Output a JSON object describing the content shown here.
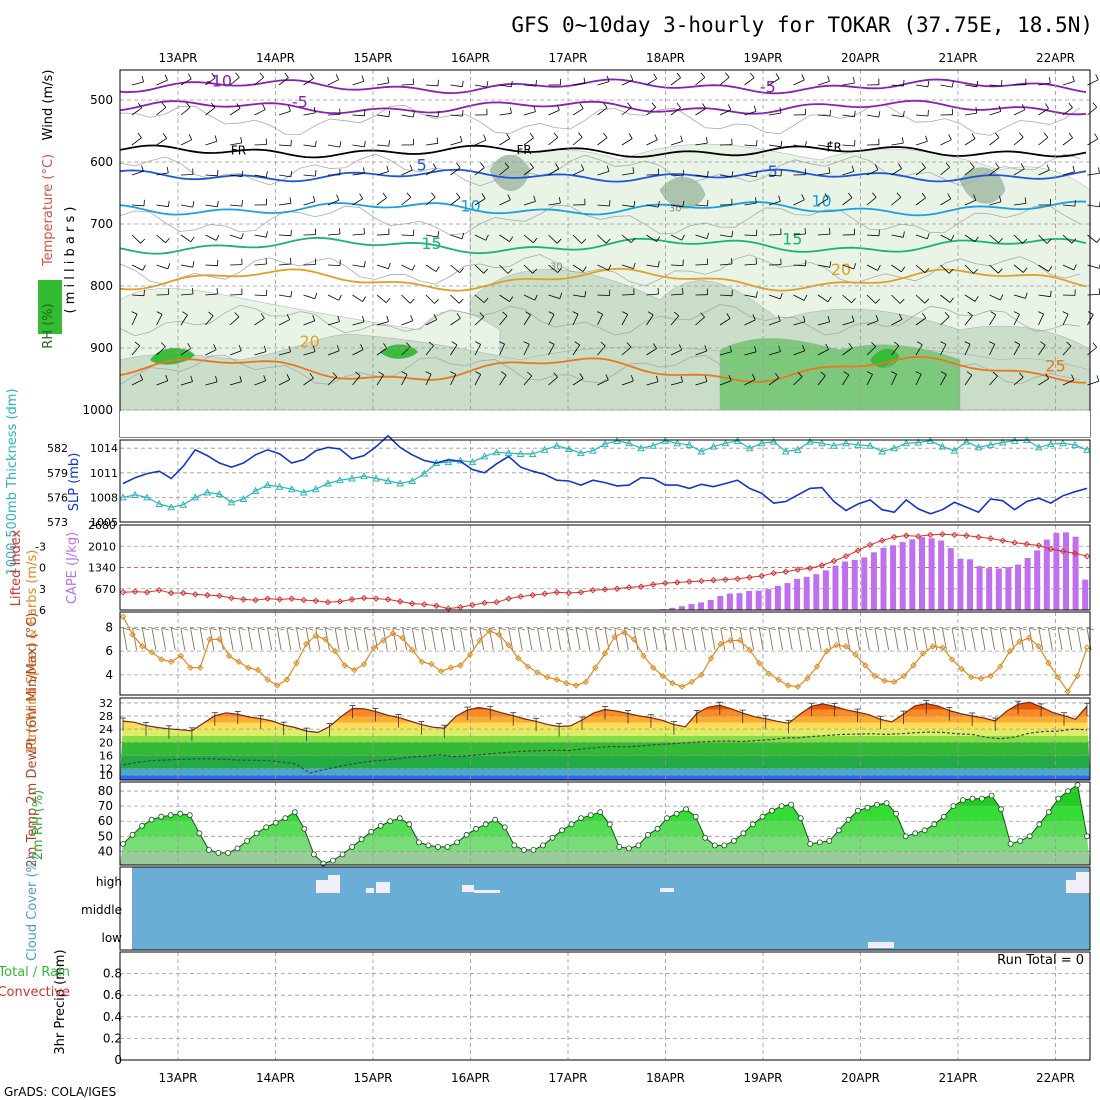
{
  "title": "GFS 0~10day 3-hourly for TOKAR (37.75E, 18.5N)",
  "footer": "GrADS: COLA/IGES",
  "dates": [
    "13APR",
    "14APR",
    "15APR",
    "16APR",
    "17APR",
    "18APR",
    "19APR",
    "20APR",
    "21APR",
    "22APR"
  ],
  "colors": {
    "rh_light": "#e8f4e6",
    "rh_mid": "#c9ddc9",
    "rh_dark": "#a9c2ab",
    "rh_green": "#78c878",
    "rh_bright": "#33bb33",
    "temp_neg": "#8a1fb0",
    "temp_fr": "#000000",
    "temp_5": "#1f55d8",
    "temp_10": "#1aa0dd",
    "temp_15": "#18b37a",
    "temp_20": "#e0a028",
    "temp_25": "#e87818",
    "thickness": "#2bb5bb",
    "slp": "#1535c8",
    "lifted": "#d83030",
    "cape": "#c070ee",
    "wind": "#e08a20",
    "cloud": "#6aaed6",
    "rh2m": "#33bb33",
    "barb": "#000000"
  },
  "chart_data": [
    {
      "panel": "upper-air",
      "type": "heatmap",
      "ylabel_parts": [
        "RH (%)",
        "Temperature (°C)",
        "Wind (m/s)",
        "( m i l l i b a r s )"
      ],
      "yticks": [
        "500",
        "600",
        "700",
        "800",
        "900",
        "1000"
      ],
      "ylim": [
        1000,
        450
      ],
      "contour_labels": [
        {
          "value": "-10",
          "x": 0.42,
          "p": 478
        },
        {
          "value": "-5",
          "x": 6.05,
          "p": 488
        },
        {
          "value": "-5",
          "x": 1.25,
          "p": 512
        },
        {
          "value": "FR",
          "x": 0.62,
          "p": 588
        },
        {
          "value": "FR",
          "x": 3.55,
          "p": 587
        },
        {
          "value": "FR",
          "x": 6.73,
          "p": 583
        },
        {
          "value": "5",
          "x": 2.5,
          "p": 614
        },
        {
          "value": "5",
          "x": 6.1,
          "p": 624
        },
        {
          "value": "10",
          "x": 3.0,
          "p": 680
        },
        {
          "value": "10",
          "x": 6.6,
          "p": 672
        },
        {
          "value": "15",
          "x": 2.6,
          "p": 740
        },
        {
          "value": "15",
          "x": 6.3,
          "p": 733
        },
        {
          "value": "20",
          "x": 1.35,
          "p": 898
        },
        {
          "value": "20",
          "x": 6.8,
          "p": 782
        },
        {
          "value": "25",
          "x": 9.0,
          "p": 938
        },
        {
          "value": "30",
          "x": 3.88,
          "p": 773
        },
        {
          "value": "30",
          "x": 5.1,
          "p": 680
        }
      ]
    },
    {
      "panel": "thickness-slp",
      "type": "line",
      "ylabel_left": "1000-500mb Thickness (dm)",
      "ylabel_right": "SLP (mb)",
      "yticks_left": [
        "582",
        "579",
        "576",
        "573"
      ],
      "yticks_right": [
        "1014",
        "1011",
        "1008",
        "1005"
      ],
      "ylim_left": [
        573,
        583
      ],
      "ylim_right": [
        1005,
        1015
      ],
      "series": [
        {
          "name": "Thickness",
          "unit": "dm",
          "values": [
            576.0,
            576.3,
            576.0,
            575.2,
            574.8,
            575.1,
            576.0,
            576.6,
            576.4,
            575.4,
            575.8,
            576.8,
            577.5,
            577.3,
            577.0,
            576.6,
            577.0,
            577.7,
            578.1,
            578.3,
            578.6,
            578.3,
            578.0,
            577.7,
            578.0,
            578.9,
            580.2,
            580.3,
            580.5,
            580.3,
            581.0,
            581.5,
            581.4,
            581.3,
            581.3,
            581.8,
            582.3,
            581.9,
            581.4,
            581.7,
            582.5,
            582.9,
            582.6,
            582.0,
            582.3,
            582.9,
            582.6,
            582.4,
            581.6,
            582.2,
            582.6,
            582.9,
            582.0,
            582.6,
            582.8,
            581.6,
            581.8,
            582.8,
            582.6,
            582.3,
            582.6,
            582.4,
            582.3,
            581.6,
            582.0,
            582.6,
            582.7,
            582.9,
            582.2,
            581.7,
            582.8,
            582.1,
            582.4,
            582.7,
            582.9,
            583.0,
            582.1,
            582.5,
            582.6,
            582.4,
            581.8
          ]
        },
        {
          "name": "SLP",
          "unit": "mb",
          "values": [
            1009.7,
            1010.4,
            1010.9,
            1011.2,
            1010.3,
            1011.8,
            1013.8,
            1013.1,
            1012.2,
            1011.7,
            1012.2,
            1013.2,
            1013.8,
            1013.3,
            1012.2,
            1012.6,
            1013.7,
            1014.1,
            1013.9,
            1012.7,
            1013.1,
            1014.2,
            1015.5,
            1014.1,
            1013.2,
            1012.5,
            1012.2,
            1012.6,
            1012.4,
            1011.4,
            1011.0,
            1012.1,
            1013.0,
            1011.7,
            1011.2,
            1010.8,
            1010.1,
            1010.0,
            1009.5,
            1010.1,
            1009.8,
            1009.4,
            1009.5,
            1010.4,
            1010.3,
            1009.5,
            1009.5,
            1009.1,
            1009.6,
            1009.3,
            1009.7,
            1010.1,
            1009.1,
            1008.5,
            1007.3,
            1007.5,
            1008.3,
            1009.1,
            1009.2,
            1007.5,
            1006.4,
            1007.2,
            1007.7,
            1006.5,
            1006.2,
            1007.7,
            1006.6,
            1006.0,
            1006.5,
            1007.4,
            1006.8,
            1006.2,
            1007.8,
            1007.6,
            1006.5,
            1007.5,
            1007.9,
            1007.3,
            1008.2,
            1008.7,
            1009.1
          ]
        }
      ]
    },
    {
      "panel": "lifted-cape",
      "type": "bar",
      "ylabel_left": "Lifted Index",
      "ylabel_right": "CAPE (J/kg)",
      "yticks_left": [
        "-3",
        "0",
        "3",
        "6"
      ],
      "yticks_right": [
        "2680",
        "2010",
        "1340",
        "670"
      ],
      "ylim_left": [
        6,
        -6
      ],
      "ylim_right": [
        0,
        2680
      ],
      "series": [
        {
          "name": "Lifted Index",
          "values": [
            3.5,
            3.4,
            3.5,
            3.2,
            3.6,
            3.6,
            3.8,
            3.9,
            4.0,
            4.3,
            4.5,
            4.6,
            4.4,
            4.5,
            4.4,
            4.6,
            4.7,
            4.9,
            4.8,
            4.5,
            4.3,
            4.4,
            4.5,
            4.8,
            5.1,
            5.2,
            5.4,
            5.8,
            5.6,
            5.3,
            5.0,
            4.9,
            4.4,
            4.1,
            3.9,
            3.7,
            3.5,
            3.6,
            3.5,
            3.2,
            3.1,
            3.0,
            2.8,
            2.7,
            2.4,
            2.2,
            2.1,
            2.0,
            1.9,
            1.8,
            1.7,
            1.6,
            1.4,
            1.2,
            0.8,
            0.6,
            0.3,
            0.1,
            -0.3,
            -0.9,
            -1.6,
            -2.4,
            -3.2,
            -3.8,
            -4.3,
            -4.5,
            -4.4,
            -4.6,
            -4.7,
            -4.6,
            -4.5,
            -4.3,
            -4.1,
            -3.8,
            -3.5,
            -3.3,
            -3.1,
            -2.6,
            -2.3,
            -2.0,
            -1.6
          ]
        },
        {
          "name": "CAPE",
          "unit": "J/kg",
          "values": [
            0,
            0,
            0,
            0,
            0,
            0,
            0,
            0,
            0,
            0,
            0,
            0,
            0,
            0,
            0,
            0,
            0,
            0,
            0,
            0,
            0,
            0,
            0,
            0,
            0,
            0,
            0,
            0,
            0,
            0,
            0,
            0,
            0,
            0,
            0,
            0,
            0,
            0,
            0,
            0,
            0,
            0,
            0,
            0,
            0,
            0,
            0,
            0,
            0,
            0,
            0,
            0,
            0,
            0,
            0,
            0,
            25,
            70,
            120,
            190,
            240,
            320,
            440,
            520,
            530,
            600,
            610,
            660,
            760,
            850,
            980,
            1040,
            1130,
            1250,
            1400,
            1530,
            1580,
            1660,
            1820,
            1960,
            2040,
            2140,
            2230,
            2300,
            2260,
            2190,
            1950,
            1620,
            1600,
            1380,
            1320,
            1310,
            1350,
            1430,
            1640,
            1880,
            2220,
            2430,
            2450,
            2310,
            960
          ]
        }
      ]
    },
    {
      "panel": "wind10m",
      "type": "line",
      "ylabel": "10m Wind Speed & Barbs (m/s)",
      "yticks": [
        "8",
        "6",
        "4"
      ],
      "ylim": [
        2.3,
        9.3
      ],
      "series": [
        {
          "name": "10m Wind Speed",
          "unit": "m/s",
          "values": [
            8.9,
            7.4,
            6.4,
            5.9,
            5.3,
            5.1,
            5.6,
            4.6,
            4.6,
            7.0,
            7.0,
            5.6,
            5.1,
            4.6,
            4.4,
            3.6,
            3.1,
            3.6,
            5.0,
            6.6,
            7.3,
            7.0,
            6.0,
            4.8,
            4.4,
            4.9,
            6.3,
            6.9,
            7.5,
            7.1,
            6.1,
            5.1,
            4.9,
            4.3,
            4.6,
            4.8,
            5.7,
            6.9,
            7.7,
            7.4,
            6.5,
            5.4,
            4.7,
            4.2,
            3.8,
            3.6,
            3.3,
            3.1,
            3.4,
            4.6,
            5.8,
            7.2,
            7.6,
            7.0,
            5.6,
            4.6,
            3.9,
            3.3,
            3.0,
            3.4,
            4.0,
            5.4,
            6.6,
            6.9,
            6.9,
            6.1,
            5.0,
            4.1,
            3.6,
            3.1,
            3.0,
            3.7,
            4.7,
            6.0,
            6.5,
            6.4,
            5.7,
            4.8,
            3.9,
            3.5,
            3.4,
            3.9,
            4.8,
            5.8,
            6.4,
            6.3,
            5.3,
            4.5,
            3.8,
            3.7,
            3.9,
            4.7,
            6.0,
            6.8,
            7.1,
            6.4,
            5.0,
            3.8,
            2.6,
            3.9,
            6.3
          ]
        }
      ]
    },
    {
      "panel": "temp2m",
      "type": "area",
      "ylabel": "2m Temp 2m DewPt (6hr Min/Max) (°C)",
      "yticks": [
        "32",
        "28",
        "24",
        "20",
        "16",
        "12",
        "10"
      ],
      "ylim": [
        8.5,
        33.5
      ],
      "series": [
        {
          "name": "2m Temp",
          "unit": "°C",
          "values": [
            26.5,
            26.1,
            25.1,
            24.5,
            24.1,
            23.8,
            23.5,
            25.8,
            28.1,
            29.0,
            28.5,
            27.7,
            27.2,
            26.5,
            25.2,
            24.5,
            23.4,
            23.0,
            24.8,
            27.8,
            30.3,
            30.2,
            29.4,
            28.3,
            27.6,
            26.5,
            25.4,
            24.6,
            24.3,
            27.9,
            29.8,
            30.6,
            30.0,
            29.0,
            28.1,
            27.1,
            26.4,
            25.4,
            24.8,
            25.0,
            26.8,
            28.9,
            30.0,
            29.5,
            28.8,
            28.0,
            27.5,
            26.7,
            25.4,
            24.7,
            28.8,
            30.7,
            31.3,
            30.2,
            28.9,
            27.8,
            27.2,
            26.4,
            25.8,
            28.6,
            31.0,
            31.7,
            30.9,
            29.9,
            29.2,
            28.4,
            27.0,
            26.2,
            28.6,
            31.1,
            31.8,
            31.1,
            29.7,
            28.7,
            28.0,
            27.4,
            26.5,
            29.5,
            31.6,
            32.2,
            30.8,
            29.1,
            28.1,
            27.0,
            31.0
          ]
        },
        {
          "name": "2m DewPt",
          "unit": "°C",
          "values": [
            13.1,
            13.9,
            14.4,
            14.6,
            14.8,
            14.9,
            15.0,
            14.8,
            14.6,
            14.5,
            14.4,
            14.0,
            13.4,
            10.6,
            11.7,
            12.6,
            13.4,
            14.1,
            14.5,
            14.9,
            15.5,
            15.8,
            16.2,
            15.6,
            15.9,
            16.3,
            16.7,
            17.0,
            17.3,
            17.4,
            17.6,
            17.5,
            18.0,
            18.4,
            18.7,
            18.6,
            18.9,
            19.3,
            19.5,
            19.8,
            20.1,
            20.3,
            20.4,
            20.2,
            20.5,
            20.8,
            21.3,
            21.4,
            21.8,
            22.1,
            22.4,
            22.5,
            22.6,
            22.4,
            22.6,
            22.9,
            23.1,
            23.0,
            22.6,
            22.4,
            21.5,
            21.1,
            21.6,
            22.8,
            23.3,
            23.4,
            24.0,
            23.8
          ]
        }
      ]
    },
    {
      "panel": "rh2m",
      "type": "area",
      "ylabel": "2m RH (%)",
      "yticks": [
        "80",
        "70",
        "60",
        "50",
        "40"
      ],
      "ylim": [
        31,
        86
      ],
      "series": [
        {
          "name": "2m RH",
          "unit": "%",
          "values": [
            45,
            51,
            57,
            61,
            63,
            64,
            65,
            64,
            52,
            41,
            39,
            39,
            42,
            47,
            52,
            56,
            59,
            62,
            66,
            55,
            38,
            32,
            34,
            38,
            43,
            48,
            53,
            57,
            60,
            62,
            58,
            46,
            44,
            43,
            43,
            46,
            51,
            55,
            58,
            61,
            56,
            44,
            41,
            41,
            44,
            49,
            54,
            58,
            62,
            64,
            66,
            58,
            43,
            42,
            44,
            51,
            55,
            62,
            65,
            68,
            63,
            49,
            44,
            44,
            47,
            52,
            58,
            63,
            67,
            70,
            71,
            62,
            45,
            46,
            47,
            54,
            61,
            67,
            69,
            71,
            72,
            65,
            50,
            52,
            54,
            58,
            63,
            70,
            74,
            75,
            75,
            77,
            68,
            45,
            47,
            50,
            58,
            66,
            75,
            80,
            84,
            50
          ]
        }
      ]
    },
    {
      "panel": "cloud",
      "type": "heatmap",
      "ylabel": "Cloud Cover (%)",
      "yticks": [
        "high",
        "middle",
        "low"
      ]
    },
    {
      "panel": "precip",
      "type": "bar",
      "ylabel": "3hr Precip (mm)",
      "yticks": [
        "0.8",
        "0.6",
        "0.4",
        "0.2",
        "0"
      ],
      "ylim": [
        0,
        1
      ],
      "legend": [
        "Total / Rain",
        "Convective"
      ],
      "annotation": "Run Total = 0",
      "series": [
        {
          "name": "3hr Precip",
          "unit": "mm",
          "values": []
        }
      ]
    }
  ]
}
